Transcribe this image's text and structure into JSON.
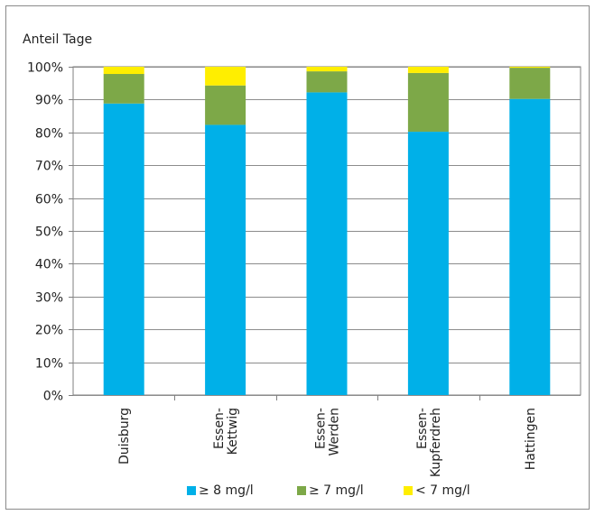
{
  "chart_data": {
    "type": "bar",
    "stacked": true,
    "ylabel": "Anteil Tage",
    "ylim": [
      0,
      100
    ],
    "ytick_labels": [
      "0%",
      "10%",
      "20%",
      "30%",
      "40%",
      "50%",
      "60%",
      "70%",
      "80%",
      "90%",
      "100%"
    ],
    "grid": true,
    "legend_position": "bottom",
    "categories": [
      [
        "Duisburg"
      ],
      [
        "Essen-",
        "Kettwig"
      ],
      [
        "Essen-",
        "Werden"
      ],
      [
        "Essen-",
        "Kupferdreh"
      ],
      [
        "Hattingen"
      ]
    ],
    "series": [
      {
        "name": "≥ 8 mg/l",
        "color": "#00b0e8",
        "values": [
          88.8,
          82.3,
          92.2,
          80.2,
          90.2
        ]
      },
      {
        "name": "≥ 7 mg/l",
        "color": "#7da848",
        "values": [
          9.0,
          12.0,
          6.4,
          17.9,
          9.5
        ]
      },
      {
        "name": "< 7 mg/l",
        "color": "#ffee00",
        "values": [
          2.2,
          5.7,
          1.4,
          1.9,
          0.3
        ]
      }
    ]
  }
}
